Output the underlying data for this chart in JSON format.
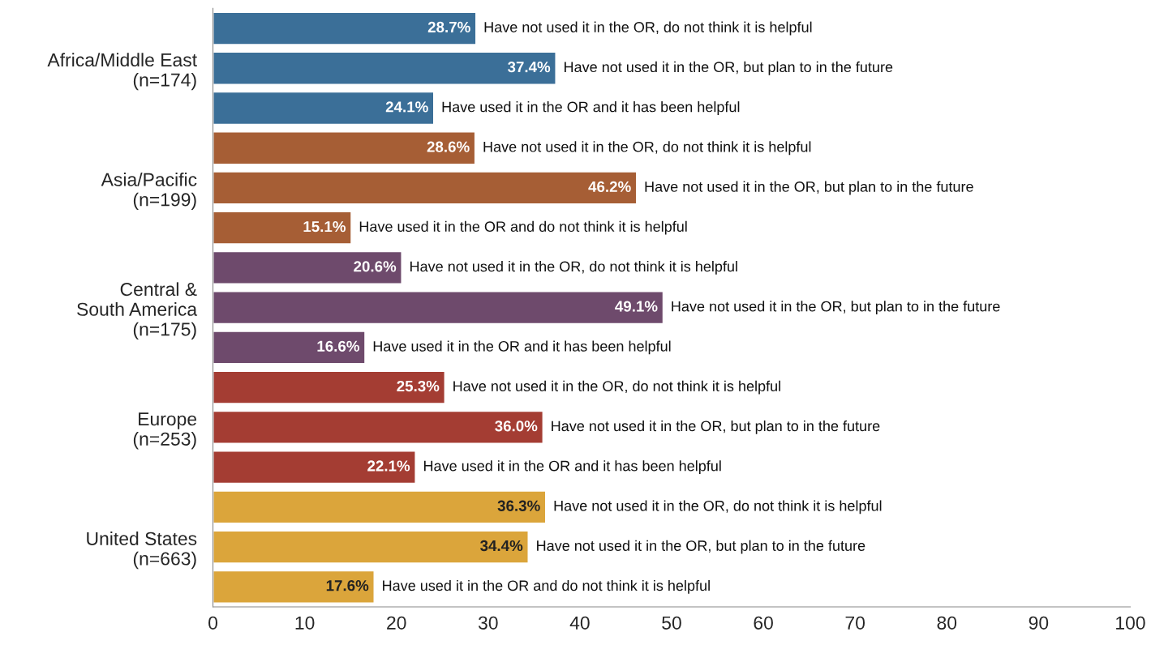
{
  "chart_data": {
    "type": "bar",
    "orientation": "horizontal",
    "categories": [
      null,
      "Africa/Middle East\n(n=174)",
      null,
      null,
      "Asia/Pacific\n(n=199)",
      null,
      null,
      "Central &\nSouth America\n(n=175)",
      null,
      null,
      "Europe\n(n=253)",
      null,
      null,
      "United States\n(n=663)",
      null
    ],
    "values": [
      28.7,
      37.4,
      24.1,
      28.6,
      46.2,
      15.1,
      20.6,
      49.1,
      16.6,
      25.3,
      36.0,
      22.1,
      36.3,
      34.4,
      17.6
    ],
    "value_labels": [
      "28.7%",
      "37.4%",
      "24.1%",
      "28.6%",
      "46.2%",
      "15.1%",
      "20.6%",
      "49.1%",
      "16.6%",
      "25.3%",
      "36.0%",
      "22.1%",
      "36.3%",
      "34.4%",
      "17.6%"
    ],
    "colors": [
      "#3b6f98",
      "#3b6f98",
      "#3b6f98",
      "#a65e35",
      "#a65e35",
      "#a65e35",
      "#6e4a6c",
      "#6e4a6c",
      "#6e4a6c",
      "#a43d33",
      "#a43d33",
      "#a43d33",
      "#dba53b",
      "#dba53b",
      "#dba53b"
    ],
    "annotations": [
      {
        "text": "Have not used it in the OR, do not think it is helpful",
        "x": 28.7
      },
      {
        "text": "Have not used it in the OR, but plan to in the future",
        "x": 37.4
      },
      {
        "text": "Have used it in the OR and it has been helpful",
        "x": 24.1
      },
      {
        "text": "Have not used it in the OR, do not think it is helpful",
        "x": 28.6
      },
      {
        "text": "Have not used it in the OR, but plan to in the future",
        "x": 46.2
      },
      {
        "text": "Have used it in the OR and do not think it is helpful",
        "x": 15.1
      },
      {
        "text": "Have not used it in the OR, do not think it is helpful",
        "x": 20.6
      },
      {
        "text": "Have not used it in the OR, but plan to in the future",
        "x": 49.1
      },
      {
        "text": "Have used it in the OR and it has been helpful",
        "x": 16.6
      },
      {
        "text": "Have not used it in the OR, do not think it is helpful",
        "x": 25.3
      },
      {
        "text": "Have not used it in the OR, but plan to in the future",
        "x": 36.0
      },
      {
        "text": "Have used it in the OR and it has been helpful",
        "x": 22.1
      },
      {
        "text": "Have not used it in the OR, do not think it is helpful",
        "x": 36.3
      },
      {
        "text": "Have not used it in the OR, but plan to in the future",
        "x": 34.4
      },
      {
        "text": "Have used it in the OR and do not think it is helpful",
        "x": 17.6
      }
    ],
    "xlim": [
      0,
      100
    ],
    "xticks": [
      0,
      10,
      20,
      30,
      40,
      50,
      60,
      70,
      80,
      90,
      100
    ],
    "grid": false,
    "legend": false
  }
}
